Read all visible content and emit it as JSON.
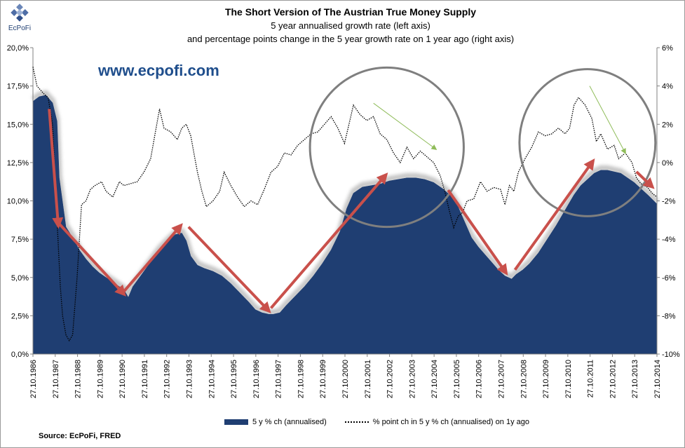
{
  "logo": {
    "name": "EcPoFi"
  },
  "title": "The Short Version of The Austrian True Money Supply",
  "subtitle1": "5 year annualised growth rate (left axis)",
  "subtitle2": "and percentage points change in the 5 year growth rate on 1 year ago (right axis)",
  "website": "www.ecpofi.com",
  "source": "Source: EcPoFi,  FRED",
  "colors": {
    "area": "#1f3e72",
    "line": "#000000",
    "arrow": "#c9504b",
    "circle": "#7f7f7f",
    "green_arrow": "#8fbc5a",
    "negative_tick": "#ff0000"
  },
  "chart_data": {
    "type": "area",
    "title": "The Short Version of The Austrian True Money Supply",
    "x_tick_labels": [
      "27.10.1986",
      "27.10.1987",
      "27.10.1988",
      "27.10.1989",
      "27.10.1990",
      "27.10.1991",
      "27.10.1992",
      "27.10.1993",
      "27.10.1994",
      "27.10.1995",
      "27.10.1996",
      "27.10.1997",
      "27.10.1998",
      "27.10.1999",
      "27.10.2000",
      "27.10.2001",
      "27.10.2002",
      "27.10.2003",
      "27.10.2004",
      "27.10.2005",
      "27.10.2006",
      "27.10.2007",
      "27.10.2008",
      "27.10.2009",
      "27.10.2010",
      "27.10.2011",
      "27.10.2012",
      "27.10.2013",
      "27.10.2014"
    ],
    "x_range": [
      1986.82,
      2014.82
    ],
    "y_left": {
      "label": "5 y % ch (annualised)",
      "range": [
        0,
        20
      ],
      "ticks": [
        "0,0%",
        "2,5%",
        "5,0%",
        "7,5%",
        "10,0%",
        "12,5%",
        "15,0%",
        "17,5%",
        "20,0%"
      ]
    },
    "y_right": {
      "label": "% point ch in 5 y % ch (annualised) on 1y ago",
      "range": [
        -10,
        6
      ],
      "ticks": [
        "-10%",
        "-8%",
        "-6%",
        "-4%",
        "-2%",
        "0%",
        "2%",
        "4%",
        "6%"
      ]
    },
    "series": [
      {
        "name": "5 y % ch (annualised)",
        "axis": "left",
        "style": "area",
        "x": [
          1986.82,
          1987.1,
          1987.4,
          1987.7,
          1987.9,
          1988.0,
          1988.3,
          1988.6,
          1988.9,
          1989.2,
          1989.5,
          1989.8,
          1990.2,
          1990.6,
          1990.9,
          1991.1,
          1991.3,
          1991.6,
          1991.9,
          1992.2,
          1992.5,
          1992.9,
          1993.2,
          1993.5,
          1993.7,
          1993.9,
          1994.2,
          1994.5,
          1994.9,
          1995.3,
          1995.7,
          1996.1,
          1996.5,
          1996.8,
          1997.1,
          1997.4,
          1997.6,
          1997.9,
          1998.2,
          1998.6,
          1999.0,
          1999.4,
          1999.8,
          2000.2,
          2000.6,
          2000.9,
          2001.2,
          2001.6,
          2002.0,
          2002.4,
          2002.8,
          2003.2,
          2003.6,
          2004.0,
          2004.4,
          2004.8,
          2005.2,
          2005.6,
          2005.9,
          2006.2,
          2006.5,
          2006.8,
          2007.1,
          2007.4,
          2007.7,
          2008.0,
          2008.3,
          2008.5,
          2008.8,
          2009.1,
          2009.5,
          2009.9,
          2010.3,
          2010.7,
          2011.1,
          2011.4,
          2011.7,
          2012.0,
          2012.3,
          2012.6,
          2012.9,
          2013.2,
          2013.5,
          2013.8,
          2014.1,
          2014.4,
          2014.82
        ],
        "values": [
          16.5,
          16.8,
          16.9,
          16.4,
          15.2,
          11.5,
          8.3,
          7.6,
          6.8,
          6.2,
          5.7,
          5.3,
          4.9,
          4.5,
          4.2,
          3.7,
          4.4,
          5.0,
          5.6,
          6.2,
          6.8,
          7.4,
          7.8,
          7.9,
          7.4,
          6.4,
          5.8,
          5.6,
          5.4,
          5.1,
          4.6,
          4.0,
          3.4,
          2.9,
          2.7,
          2.6,
          2.6,
          2.7,
          3.2,
          3.8,
          4.4,
          5.1,
          5.9,
          6.8,
          8.0,
          9.5,
          10.5,
          10.9,
          11.0,
          11.1,
          11.3,
          11.4,
          11.5,
          11.5,
          11.4,
          11.2,
          10.8,
          10.3,
          9.6,
          8.6,
          7.6,
          7.0,
          6.5,
          6.0,
          5.5,
          5.1,
          4.9,
          5.2,
          5.5,
          5.9,
          6.6,
          7.5,
          8.4,
          9.4,
          10.4,
          11.0,
          11.4,
          11.8,
          12.0,
          12.0,
          11.9,
          11.8,
          11.5,
          11.2,
          10.8,
          10.4,
          9.8
        ]
      },
      {
        "name": "% point ch in 5 y % ch (annualised) on 1y ago",
        "axis": "right",
        "style": "dotted-line",
        "x": [
          1986.82,
          1987.0,
          1987.3,
          1987.5,
          1987.7,
          1987.9,
          1988.05,
          1988.15,
          1988.3,
          1988.45,
          1988.6,
          1988.8,
          1989.0,
          1989.2,
          1989.4,
          1989.6,
          1989.9,
          1990.1,
          1990.4,
          1990.7,
          1990.9,
          1991.2,
          1991.5,
          1991.8,
          1992.1,
          1992.3,
          1992.5,
          1992.7,
          1993.0,
          1993.3,
          1993.5,
          1993.7,
          1993.9,
          1994.2,
          1994.4,
          1994.6,
          1994.9,
          1995.2,
          1995.4,
          1995.7,
          1996.0,
          1996.3,
          1996.6,
          1996.9,
          1997.2,
          1997.5,
          1997.8,
          1998.1,
          1998.4,
          1998.7,
          1999.0,
          1999.3,
          1999.6,
          1999.9,
          2000.2,
          2000.5,
          2000.8,
          2001.0,
          2001.2,
          2001.5,
          2001.8,
          2002.1,
          2002.4,
          2002.7,
          2003.0,
          2003.3,
          2003.6,
          2003.9,
          2004.2,
          2004.5,
          2004.8,
          2005.1,
          2005.3,
          2005.5,
          2005.7,
          2005.9,
          2006.1,
          2006.3,
          2006.6,
          2006.9,
          2007.2,
          2007.5,
          2007.8,
          2008.0,
          2008.2,
          2008.4,
          2008.6,
          2008.9,
          2009.2,
          2009.5,
          2009.8,
          2010.1,
          2010.4,
          2010.7,
          2010.9,
          2011.1,
          2011.3,
          2011.6,
          2011.9,
          2012.1,
          2012.3,
          2012.6,
          2012.9,
          2013.1,
          2013.4,
          2013.7,
          2013.9,
          2014.1,
          2014.4,
          2014.6,
          2014.82
        ],
        "values": [
          5.0,
          4.0,
          3.6,
          3.4,
          2.0,
          -3.0,
          -6.5,
          -8.0,
          -9.0,
          -9.3,
          -9.0,
          -6.0,
          -2.2,
          -2.0,
          -1.4,
          -1.2,
          -1.0,
          -1.5,
          -1.8,
          -1.0,
          -1.2,
          -1.1,
          -1.0,
          -0.5,
          0.2,
          1.5,
          2.8,
          1.8,
          1.6,
          1.2,
          1.8,
          2.0,
          1.4,
          -0.5,
          -1.5,
          -2.3,
          -2.0,
          -1.5,
          -0.5,
          -1.2,
          -1.8,
          -2.3,
          -2.0,
          -2.2,
          -1.4,
          -0.5,
          -0.2,
          0.5,
          0.4,
          0.9,
          1.2,
          1.5,
          1.6,
          2.0,
          2.4,
          1.8,
          1.0,
          2.0,
          3.0,
          2.5,
          2.2,
          2.4,
          1.5,
          1.2,
          0.5,
          0.0,
          0.8,
          0.2,
          0.6,
          0.3,
          0.0,
          -0.7,
          -1.5,
          -2.5,
          -3.4,
          -2.8,
          -2.6,
          -2.0,
          -1.9,
          -1.0,
          -1.5,
          -1.3,
          -1.4,
          -2.2,
          -1.2,
          -1.5,
          -0.5,
          0.2,
          0.8,
          1.6,
          1.4,
          1.5,
          1.8,
          1.5,
          1.8,
          3.0,
          3.4,
          3.0,
          2.3,
          1.1,
          1.5,
          0.7,
          0.9,
          0.2,
          0.5,
          0.0,
          -0.8,
          -1.1,
          -1.3,
          -1.6,
          -1.8
        ]
      }
    ],
    "annotations": {
      "red_arrows": [
        {
          "from": [
            1987.55,
            16.0
          ],
          "to": [
            1987.95,
            8.5
          ]
        },
        {
          "from": [
            1988.0,
            8.5
          ],
          "to": [
            1990.85,
            4.0
          ]
        },
        {
          "from": [
            1990.85,
            4.0
          ],
          "to": [
            1993.4,
            8.3
          ]
        },
        {
          "from": [
            1993.8,
            8.3
          ],
          "to": [
            1997.35,
            2.9
          ]
        },
        {
          "from": [
            1997.5,
            3.0
          ],
          "to": [
            2002.6,
            11.6
          ]
        },
        {
          "from": [
            2005.45,
            10.7
          ],
          "to": [
            2008.0,
            5.4
          ]
        },
        {
          "from": [
            2008.45,
            5.5
          ],
          "to": [
            2011.9,
            12.5
          ]
        },
        {
          "from": [
            2013.9,
            11.9
          ],
          "to": [
            2014.55,
            11.0
          ]
        }
      ],
      "green_arrows": [
        {
          "from": [
            2002.1,
            3.1
          ],
          "to": [
            2004.9,
            0.7
          ]
        },
        {
          "from": [
            2011.8,
            4.0
          ],
          "to": [
            2013.4,
            0.5
          ]
        }
      ],
      "circles": [
        {
          "center": [
            2002.7,
            13.5
          ],
          "radius_x_years": 3.45,
          "radius_y_pct": 5.2
        },
        {
          "center": [
            2011.7,
            13.8
          ],
          "radius_x_years": 3.05,
          "radius_y_pct": 4.8
        }
      ]
    }
  }
}
